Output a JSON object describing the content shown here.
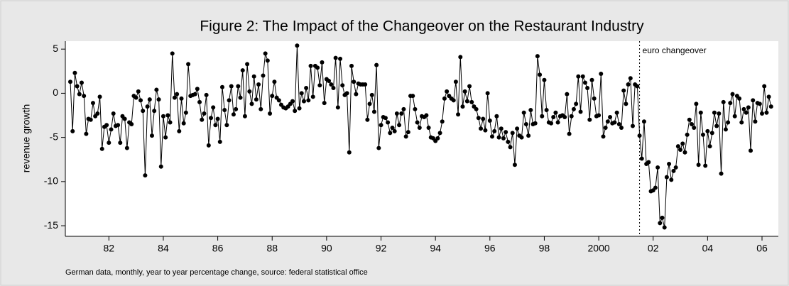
{
  "chart_data": {
    "type": "line",
    "title": "Figure 2: The Impact of the Changeover on the Restaurant Industry",
    "y_label": "revenue growth",
    "footnote": "German data, monthly, year to year percentage change, source: federal statistical office",
    "annotation": {
      "x": 2002,
      "text": "euro changeover"
    },
    "xlim": [
      1980.9,
      2007.1
    ],
    "ylim": [
      -16.2,
      5.9
    ],
    "yticks": [
      5,
      0,
      -5,
      -10,
      -15
    ],
    "xticks": [
      {
        "value": 1982.5,
        "label": "82"
      },
      {
        "value": 1984.5,
        "label": "84"
      },
      {
        "value": 1986.5,
        "label": "86"
      },
      {
        "value": 1988.5,
        "label": "88"
      },
      {
        "value": 1990.5,
        "label": "90"
      },
      {
        "value": 1992.5,
        "label": "92"
      },
      {
        "value": 1994.5,
        "label": "94"
      },
      {
        "value": 1996.5,
        "label": "96"
      },
      {
        "value": 1998.5,
        "label": "98"
      },
      {
        "value": 2000.5,
        "label": "2000"
      },
      {
        "value": 2002.5,
        "label": "02"
      },
      {
        "value": 2004.5,
        "label": "04"
      },
      {
        "value": 2006.5,
        "label": "06"
      }
    ],
    "x": [
      1981.083,
      1981.167,
      1981.25,
      1981.333,
      1981.417,
      1981.5,
      1981.583,
      1981.667,
      1981.75,
      1981.833,
      1981.917,
      1982,
      1982.083,
      1982.167,
      1982.25,
      1982.333,
      1982.417,
      1982.5,
      1982.583,
      1982.667,
      1982.75,
      1982.833,
      1982.917,
      1983,
      1983.083,
      1983.167,
      1983.25,
      1983.333,
      1983.417,
      1983.5,
      1983.583,
      1983.667,
      1983.75,
      1983.833,
      1983.917,
      1984,
      1984.083,
      1984.167,
      1984.25,
      1984.333,
      1984.417,
      1984.5,
      1984.583,
      1984.667,
      1984.75,
      1984.833,
      1984.917,
      1985,
      1985.083,
      1985.167,
      1985.25,
      1985.333,
      1985.417,
      1985.5,
      1985.583,
      1985.667,
      1985.75,
      1985.833,
      1985.917,
      1986,
      1986.083,
      1986.167,
      1986.25,
      1986.333,
      1986.417,
      1986.5,
      1986.583,
      1986.667,
      1986.75,
      1986.833,
      1986.917,
      1987,
      1987.083,
      1987.167,
      1987.25,
      1987.333,
      1987.417,
      1987.5,
      1987.583,
      1987.667,
      1987.75,
      1987.833,
      1987.917,
      1988,
      1988.083,
      1988.167,
      1988.25,
      1988.333,
      1988.417,
      1988.5,
      1988.583,
      1988.667,
      1988.75,
      1988.833,
      1988.917,
      1989,
      1989.083,
      1989.167,
      1989.25,
      1989.333,
      1989.417,
      1989.5,
      1989.583,
      1989.667,
      1989.75,
      1989.833,
      1989.917,
      1990,
      1990.083,
      1990.167,
      1990.25,
      1990.333,
      1990.417,
      1990.5,
      1990.583,
      1990.667,
      1990.75,
      1990.833,
      1990.917,
      1991,
      1991.083,
      1991.167,
      1991.25,
      1991.333,
      1991.417,
      1991.5,
      1991.583,
      1991.667,
      1991.75,
      1991.833,
      1991.917,
      1992,
      1992.083,
      1992.167,
      1992.25,
      1992.333,
      1992.417,
      1992.5,
      1992.583,
      1992.667,
      1992.75,
      1992.833,
      1992.917,
      1993,
      1993.083,
      1993.167,
      1993.25,
      1993.333,
      1993.417,
      1993.5,
      1993.583,
      1993.667,
      1993.75,
      1993.833,
      1993.917,
      1994,
      1994.083,
      1994.167,
      1994.25,
      1994.333,
      1994.417,
      1994.5,
      1994.583,
      1994.667,
      1994.75,
      1994.833,
      1994.917,
      1995,
      1995.083,
      1995.167,
      1995.25,
      1995.333,
      1995.417,
      1995.5,
      1995.583,
      1995.667,
      1995.75,
      1995.833,
      1995.917,
      1996,
      1996.083,
      1996.167,
      1996.25,
      1996.333,
      1996.417,
      1996.5,
      1996.583,
      1996.667,
      1996.75,
      1996.833,
      1996.917,
      1997,
      1997.083,
      1997.167,
      1997.25,
      1997.333,
      1997.417,
      1997.5,
      1997.583,
      1997.667,
      1997.75,
      1997.833,
      1997.917,
      1998,
      1998.083,
      1998.167,
      1998.25,
      1998.333,
      1998.417,
      1998.5,
      1998.583,
      1998.667,
      1998.75,
      1998.833,
      1998.917,
      1999,
      1999.083,
      1999.167,
      1999.25,
      1999.333,
      1999.417,
      1999.5,
      1999.583,
      1999.667,
      1999.75,
      1999.833,
      1999.917,
      2000,
      2000.083,
      2000.167,
      2000.25,
      2000.333,
      2000.417,
      2000.5,
      2000.583,
      2000.667,
      2000.75,
      2000.833,
      2000.917,
      2001,
      2001.083,
      2001.167,
      2001.25,
      2001.333,
      2001.417,
      2001.5,
      2001.583,
      2001.667,
      2001.75,
      2001.833,
      2001.917,
      2002,
      2002.083,
      2002.167,
      2002.25,
      2002.333,
      2002.417,
      2002.5,
      2002.583,
      2002.667,
      2002.75,
      2002.833,
      2002.917,
      2003,
      2003.083,
      2003.167,
      2003.25,
      2003.333,
      2003.417,
      2003.5,
      2003.583,
      2003.667,
      2003.75,
      2003.833,
      2003.917,
      2004,
      2004.083,
      2004.167,
      2004.25,
      2004.333,
      2004.417,
      2004.5,
      2004.583,
      2004.667,
      2004.75,
      2004.833,
      2004.917,
      2005,
      2005.083,
      2005.167,
      2005.25,
      2005.333,
      2005.417,
      2005.5,
      2005.583,
      2005.667,
      2005.75,
      2005.833,
      2005.917,
      2006,
      2006.083,
      2006.167,
      2006.25,
      2006.333,
      2006.417,
      2006.5,
      2006.583,
      2006.667,
      2006.75,
      2006.833
    ],
    "series": [
      {
        "color": "#000000",
        "values": [
          1.3,
          -4.3,
          2.3,
          0.8,
          -0.1,
          1.2,
          -0.3,
          -4.6,
          -2.9,
          -3.0,
          -1.1,
          -2.6,
          -2.3,
          -0.4,
          -6.3,
          -3.8,
          -3.6,
          -5.6,
          -4.1,
          -2.3,
          -3.7,
          -3.6,
          -5.6,
          -2.6,
          -2.9,
          -6.2,
          -3.3,
          -3.5,
          -0.3,
          -0.5,
          0.2,
          -0.8,
          -2.0,
          -9.3,
          -1.5,
          -0.7,
          -4.8,
          -2.0,
          0.4,
          -0.7,
          -8.3,
          -2.6,
          -5.0,
          -2.5,
          -3.3,
          4.5,
          -0.5,
          -0.1,
          -4.3,
          -0.6,
          -3.4,
          -2.2,
          3.3,
          -0.3,
          -0.2,
          -0.1,
          0.5,
          -1.0,
          -3.0,
          -2.3,
          -0.2,
          -5.9,
          -2.8,
          -1.6,
          -3.6,
          -2.9,
          -5.5,
          0.7,
          -1.9,
          -3.6,
          -0.8,
          0.8,
          -2.4,
          -1.8,
          0.8,
          -0.5,
          2.6,
          -2.6,
          3.3,
          0.2,
          -1.2,
          1.9,
          -0.7,
          1.0,
          -1.8,
          2.0,
          4.5,
          3.7,
          -2.3,
          -0.3,
          1.3,
          -0.5,
          -0.8,
          -1.3,
          -1.6,
          -1.7,
          -1.5,
          -1.2,
          -0.9,
          -2.0,
          5.4,
          -1.7,
          0.0,
          -0.9,
          0.6,
          -0.8,
          3.1,
          -0.4,
          3.1,
          2.9,
          0.9,
          3.5,
          -1.1,
          1.6,
          1.4,
          1.0,
          0.6,
          4.0,
          -1.6,
          3.9,
          0.9,
          -0.2,
          0.0,
          -6.7,
          3.1,
          1.3,
          -0.1,
          1.1,
          1.0,
          1.0,
          1.0,
          -3.0,
          -1.2,
          -0.2,
          -2.1,
          3.2,
          -6.2,
          -3.6,
          -2.7,
          -2.8,
          -3.3,
          -4.5,
          -3.9,
          -4.3,
          -2.3,
          -3.6,
          -2.3,
          -1.8,
          -4.9,
          -4.4,
          -0.3,
          -0.3,
          -1.8,
          -3.3,
          -3.9,
          -2.6,
          -2.7,
          -2.5,
          -3.9,
          -5.0,
          -5.1,
          -5.4,
          -5.1,
          -4.5,
          -3.2,
          -0.6,
          0.2,
          -0.3,
          -0.6,
          -0.8,
          1.3,
          -2.4,
          4.1,
          -1.5,
          0.2,
          -0.9,
          0.8,
          -1.0,
          -1.5,
          -1.8,
          -2.8,
          -4.0,
          -2.9,
          -4.2,
          0.0,
          -3.1,
          -4.9,
          -4.3,
          -2.6,
          -5.0,
          -4.0,
          -5.1,
          -4.4,
          -5.5,
          -6.1,
          -4.5,
          -8.1,
          -4.0,
          -4.8,
          -5.0,
          -2.2,
          -3.5,
          -4.8,
          -1.9,
          -3.5,
          -3.4,
          4.2,
          2.1,
          -2.6,
          1.5,
          -1.9,
          -3.3,
          -3.4,
          -2.7,
          -2.2,
          -3.3,
          -2.6,
          -2.5,
          -2.7,
          -0.1,
          -4.6,
          -2.6,
          -1.8,
          -1.2,
          1.9,
          -2.1,
          1.9,
          1.2,
          0.6,
          -3.0,
          1.5,
          -0.6,
          -2.6,
          -2.5,
          2.2,
          -4.9,
          -3.9,
          -3.2,
          -2.7,
          -3.4,
          -3.3,
          -2.2,
          -3.5,
          -3.9,
          0.3,
          -1.2,
          1.0,
          1.7,
          -3.7,
          1.0,
          0.8,
          -4.8,
          -7.4,
          -3.2,
          -8.0,
          -7.8,
          -11.1,
          -11.0,
          -10.7,
          -8.4,
          -14.7,
          -14.1,
          -15.2,
          -9.5,
          -8.0,
          -9.8,
          -8.8,
          -8.4,
          -6.0,
          -6.4,
          -5.7,
          -6.7,
          -4.7,
          -3.0,
          -3.5,
          -3.9,
          -1.2,
          -8.1,
          -2.2,
          -4.7,
          -8.2,
          -4.3,
          -6.0,
          -4.5,
          -2.2,
          -3.7,
          -2.3,
          -9.1,
          -1.0,
          -4.1,
          -3.3,
          -1.1,
          -0.1,
          -2.6,
          -0.3,
          -0.6,
          -3.3,
          -1.8,
          -2.2,
          -1.6,
          -6.5,
          -0.8,
          -3.2,
          -1.1,
          -1.2,
          -2.3,
          0.8,
          -2.2,
          -0.4,
          -1.5
        ]
      }
    ]
  }
}
